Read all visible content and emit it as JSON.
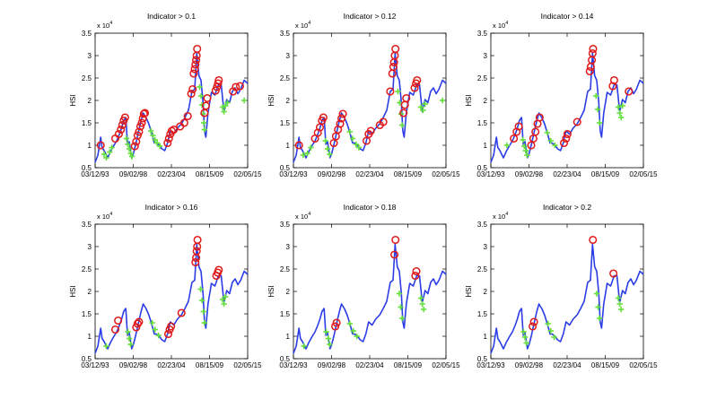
{
  "figure": {
    "shared": {
      "ylabel": "HSI",
      "y_exponent_base": "x 10",
      "y_exponent_power": "4",
      "x_tick_labels": [
        "03/12/93",
        "09/02/98",
        "02/23/04",
        "08/15/09",
        "02/05/15"
      ],
      "y_tick_labels": [
        "0.5",
        "1",
        "1.5",
        "2",
        "2.5",
        "3",
        "3.5"
      ],
      "ylim": [
        0.5,
        3.5
      ],
      "x_range_years": [
        1993.2,
        2015.1
      ],
      "colors": {
        "series": "#2b3de6",
        "marker_circle": "#e01919",
        "marker_plus": "#64e03c"
      }
    },
    "hsi_series_x10k": [
      [
        1993.2,
        0.62
      ],
      [
        1993.6,
        0.78
      ],
      [
        1994.0,
        1.18
      ],
      [
        1994.2,
        0.95
      ],
      [
        1994.5,
        0.88
      ],
      [
        1995.0,
        0.72
      ],
      [
        1995.4,
        0.86
      ],
      [
        1995.9,
        1.0
      ],
      [
        1996.3,
        1.1
      ],
      [
        1996.7,
        1.25
      ],
      [
        1997.0,
        1.38
      ],
      [
        1997.3,
        1.55
      ],
      [
        1997.6,
        1.62
      ],
      [
        1997.85,
        1.02
      ],
      [
        1998.1,
        1.08
      ],
      [
        1998.45,
        0.72
      ],
      [
        1998.7,
        0.82
      ],
      [
        1999.0,
        1.0
      ],
      [
        1999.4,
        1.28
      ],
      [
        1999.8,
        1.55
      ],
      [
        2000.1,
        1.72
      ],
      [
        2000.5,
        1.62
      ],
      [
        2000.9,
        1.48
      ],
      [
        2001.3,
        1.28
      ],
      [
        2001.7,
        1.05
      ],
      [
        2002.0,
        1.05
      ],
      [
        2002.4,
        1.0
      ],
      [
        2002.8,
        0.92
      ],
      [
        2003.2,
        0.88
      ],
      [
        2003.6,
        1.05
      ],
      [
        2004.0,
        1.32
      ],
      [
        2004.5,
        1.25
      ],
      [
        2005.0,
        1.38
      ],
      [
        2005.6,
        1.48
      ],
      [
        2006.1,
        1.62
      ],
      [
        2006.6,
        1.78
      ],
      [
        2007.1,
        2.2
      ],
      [
        2007.5,
        2.25
      ],
      [
        2007.8,
        3.05
      ],
      [
        2008.1,
        2.55
      ],
      [
        2008.4,
        2.45
      ],
      [
        2008.7,
        1.95
      ],
      [
        2008.9,
        1.32
      ],
      [
        2009.1,
        1.18
      ],
      [
        2009.4,
        1.72
      ],
      [
        2009.9,
        2.18
      ],
      [
        2010.4,
        2.12
      ],
      [
        2010.9,
        2.35
      ],
      [
        2011.3,
        2.35
      ],
      [
        2011.7,
        1.75
      ],
      [
        2012.1,
        2.02
      ],
      [
        2012.5,
        1.95
      ],
      [
        2012.9,
        2.2
      ],
      [
        2013.3,
        2.28
      ],
      [
        2013.7,
        2.15
      ],
      [
        2014.1,
        2.25
      ],
      [
        2014.6,
        2.45
      ],
      [
        2015.1,
        2.38
      ]
    ],
    "panels": [
      {
        "title": "Indicator > 0.1",
        "circles": [
          [
            1994.0,
            1.0
          ],
          [
            1996.1,
            1.15
          ],
          [
            1996.6,
            1.25
          ],
          [
            1996.9,
            1.35
          ],
          [
            1997.1,
            1.45
          ],
          [
            1997.3,
            1.55
          ],
          [
            1997.5,
            1.62
          ],
          [
            1998.9,
            0.98
          ],
          [
            1999.1,
            1.08
          ],
          [
            1999.3,
            1.22
          ],
          [
            1999.5,
            1.3
          ],
          [
            1999.7,
            1.42
          ],
          [
            1999.9,
            1.5
          ],
          [
            2000.05,
            1.6
          ],
          [
            2000.2,
            1.7
          ],
          [
            2000.35,
            1.72
          ],
          [
            2003.6,
            1.05
          ],
          [
            2003.8,
            1.15
          ],
          [
            2004.0,
            1.25
          ],
          [
            2004.2,
            1.32
          ],
          [
            2004.5,
            1.35
          ],
          [
            2005.4,
            1.42
          ],
          [
            2006.0,
            1.5
          ],
          [
            2006.5,
            1.65
          ],
          [
            2007.0,
            2.15
          ],
          [
            2007.2,
            2.25
          ],
          [
            2007.35,
            2.6
          ],
          [
            2007.5,
            2.7
          ],
          [
            2007.6,
            2.8
          ],
          [
            2007.7,
            2.9
          ],
          [
            2007.78,
            3.0
          ],
          [
            2007.85,
            3.15
          ],
          [
            2008.9,
            1.72
          ],
          [
            2009.1,
            1.88
          ],
          [
            2009.3,
            2.05
          ],
          [
            2010.5,
            2.22
          ],
          [
            2010.7,
            2.3
          ],
          [
            2010.85,
            2.38
          ],
          [
            2010.95,
            2.45
          ],
          [
            2013.0,
            2.2
          ],
          [
            2013.4,
            2.3
          ],
          [
            2014.0,
            2.32
          ]
        ],
        "pluses": [
          [
            1994.5,
            0.8
          ],
          [
            1994.8,
            0.72
          ],
          [
            1995.3,
            0.85
          ],
          [
            1995.6,
            0.95
          ],
          [
            1997.7,
            1.15
          ],
          [
            1997.9,
            1.02
          ],
          [
            1998.1,
            0.92
          ],
          [
            1998.3,
            0.82
          ],
          [
            1998.5,
            0.75
          ],
          [
            2001.2,
            1.32
          ],
          [
            2001.5,
            1.22
          ],
          [
            2001.8,
            1.12
          ],
          [
            2002.1,
            1.05
          ],
          [
            2002.5,
            0.98
          ],
          [
            2008.2,
            2.3
          ],
          [
            2008.4,
            2.1
          ],
          [
            2008.55,
            1.9
          ],
          [
            2008.7,
            1.7
          ],
          [
            2008.8,
            1.5
          ],
          [
            2008.9,
            1.35
          ],
          [
            2011.5,
            1.85
          ],
          [
            2011.7,
            1.75
          ],
          [
            2011.9,
            1.88
          ],
          [
            2012.2,
            1.95
          ],
          [
            2014.6,
            2.0
          ]
        ]
      },
      {
        "title": "Indicator > 0.12",
        "circles": [
          [
            1994.0,
            1.0
          ],
          [
            1996.3,
            1.15
          ],
          [
            1996.7,
            1.28
          ],
          [
            1997.0,
            1.4
          ],
          [
            1997.3,
            1.55
          ],
          [
            1997.5,
            1.62
          ],
          [
            1999.0,
            1.05
          ],
          [
            1999.3,
            1.2
          ],
          [
            1999.6,
            1.35
          ],
          [
            1999.9,
            1.48
          ],
          [
            2000.1,
            1.6
          ],
          [
            2000.3,
            1.7
          ],
          [
            2003.7,
            1.1
          ],
          [
            2004.0,
            1.25
          ],
          [
            2004.3,
            1.32
          ],
          [
            2005.6,
            1.45
          ],
          [
            2006.1,
            1.52
          ],
          [
            2007.1,
            2.2
          ],
          [
            2007.4,
            2.6
          ],
          [
            2007.55,
            2.75
          ],
          [
            2007.65,
            2.85
          ],
          [
            2007.75,
            3.0
          ],
          [
            2007.85,
            3.15
          ],
          [
            2009.0,
            1.72
          ],
          [
            2009.2,
            1.9
          ],
          [
            2009.4,
            2.05
          ],
          [
            2010.6,
            2.28
          ],
          [
            2010.8,
            2.38
          ],
          [
            2010.95,
            2.45
          ]
        ],
        "pluses": [
          [
            1994.6,
            0.78
          ],
          [
            1995.2,
            0.82
          ],
          [
            1995.7,
            0.95
          ],
          [
            1997.8,
            1.1
          ],
          [
            1998.1,
            0.92
          ],
          [
            1998.4,
            0.8
          ],
          [
            2001.3,
            1.3
          ],
          [
            2001.7,
            1.15
          ],
          [
            2002.2,
            1.02
          ],
          [
            2002.6,
            0.95
          ],
          [
            2008.2,
            2.2
          ],
          [
            2008.45,
            1.95
          ],
          [
            2008.65,
            1.7
          ],
          [
            2008.8,
            1.45
          ],
          [
            2011.5,
            1.85
          ],
          [
            2011.8,
            1.78
          ],
          [
            2012.1,
            1.92
          ],
          [
            2014.6,
            2.0
          ]
        ]
      },
      {
        "title": "Indicator > 0.14",
        "circles": [
          [
            1996.5,
            1.15
          ],
          [
            1996.9,
            1.3
          ],
          [
            1997.2,
            1.42
          ],
          [
            1999.0,
            1.0
          ],
          [
            1999.3,
            1.15
          ],
          [
            1999.6,
            1.3
          ],
          [
            1999.9,
            1.48
          ],
          [
            2000.2,
            1.62
          ],
          [
            2003.7,
            1.05
          ],
          [
            2004.0,
            1.15
          ],
          [
            2004.2,
            1.25
          ],
          [
            2005.6,
            1.52
          ],
          [
            2007.4,
            2.65
          ],
          [
            2007.55,
            2.75
          ],
          [
            2007.7,
            2.9
          ],
          [
            2007.8,
            3.05
          ],
          [
            2007.88,
            3.15
          ],
          [
            2010.7,
            2.32
          ],
          [
            2010.9,
            2.45
          ],
          [
            2013.0,
            2.2
          ]
        ],
        "pluses": [
          [
            1995.5,
            1.0
          ],
          [
            1997.8,
            1.12
          ],
          [
            1998.0,
            0.98
          ],
          [
            1998.2,
            0.88
          ],
          [
            1998.4,
            0.78
          ],
          [
            2001.3,
            1.28
          ],
          [
            2001.8,
            1.1
          ],
          [
            2002.4,
            1.0
          ],
          [
            2008.3,
            2.1
          ],
          [
            2008.55,
            1.8
          ],
          [
            2008.8,
            1.5
          ],
          [
            2011.5,
            1.85
          ],
          [
            2011.7,
            1.72
          ],
          [
            2011.9,
            1.62
          ],
          [
            2012.1,
            1.88
          ]
        ]
      },
      {
        "title": "Indicator > 0.16",
        "circles": [
          [
            1996.1,
            1.15
          ],
          [
            1996.5,
            1.35
          ],
          [
            1999.1,
            1.2
          ],
          [
            1999.3,
            1.28
          ],
          [
            1999.5,
            1.32
          ],
          [
            2003.7,
            1.05
          ],
          [
            2003.9,
            1.15
          ],
          [
            2004.1,
            1.22
          ],
          [
            2005.6,
            1.52
          ],
          [
            2007.6,
            2.65
          ],
          [
            2007.7,
            2.75
          ],
          [
            2007.78,
            2.9
          ],
          [
            2007.85,
            3.0
          ],
          [
            2007.9,
            3.15
          ],
          [
            2010.6,
            2.35
          ],
          [
            2010.8,
            2.42
          ],
          [
            2010.95,
            2.48
          ]
        ],
        "pluses": [
          [
            1994.8,
            0.78
          ],
          [
            1997.9,
            1.1
          ],
          [
            1998.1,
            0.95
          ],
          [
            1998.3,
            0.82
          ],
          [
            2001.4,
            1.3
          ],
          [
            2001.8,
            1.15
          ],
          [
            2002.3,
            1.02
          ],
          [
            2008.35,
            2.05
          ],
          [
            2008.55,
            1.8
          ],
          [
            2008.75,
            1.55
          ],
          [
            2008.9,
            1.3
          ],
          [
            2011.5,
            1.82
          ],
          [
            2011.7,
            1.72
          ],
          [
            2011.9,
            1.88
          ]
        ]
      },
      {
        "title": "Indicator > 0.18",
        "circles": [
          [
            1999.2,
            1.22
          ],
          [
            1999.4,
            1.3
          ],
          [
            2007.7,
            2.82
          ],
          [
            2007.85,
            3.15
          ],
          [
            2010.7,
            2.35
          ],
          [
            2010.85,
            2.45
          ]
        ],
        "pluses": [
          [
            1994.7,
            0.78
          ],
          [
            1997.9,
            1.1
          ],
          [
            1998.2,
            0.95
          ],
          [
            1998.4,
            0.82
          ],
          [
            2001.3,
            1.28
          ],
          [
            2001.8,
            1.12
          ],
          [
            2002.3,
            1.0
          ],
          [
            2008.4,
            1.95
          ],
          [
            2008.6,
            1.65
          ],
          [
            2008.8,
            1.4
          ],
          [
            2011.5,
            1.85
          ],
          [
            2011.7,
            1.72
          ],
          [
            2011.9,
            1.6
          ]
        ]
      },
      {
        "title": "Indicator > 0.2",
        "circles": [
          [
            1999.2,
            1.22
          ],
          [
            1999.4,
            1.32
          ],
          [
            2007.85,
            3.15
          ],
          [
            2010.8,
            2.4
          ]
        ],
        "pluses": [
          [
            1997.9,
            1.1
          ],
          [
            1998.1,
            0.98
          ],
          [
            1998.3,
            0.85
          ],
          [
            2001.4,
            1.28
          ],
          [
            2001.8,
            1.12
          ],
          [
            2002.3,
            0.98
          ],
          [
            2008.4,
            1.95
          ],
          [
            2008.6,
            1.65
          ],
          [
            2008.8,
            1.4
          ],
          [
            2011.5,
            1.85
          ],
          [
            2011.7,
            1.72
          ],
          [
            2011.9,
            1.6
          ]
        ]
      }
    ]
  }
}
